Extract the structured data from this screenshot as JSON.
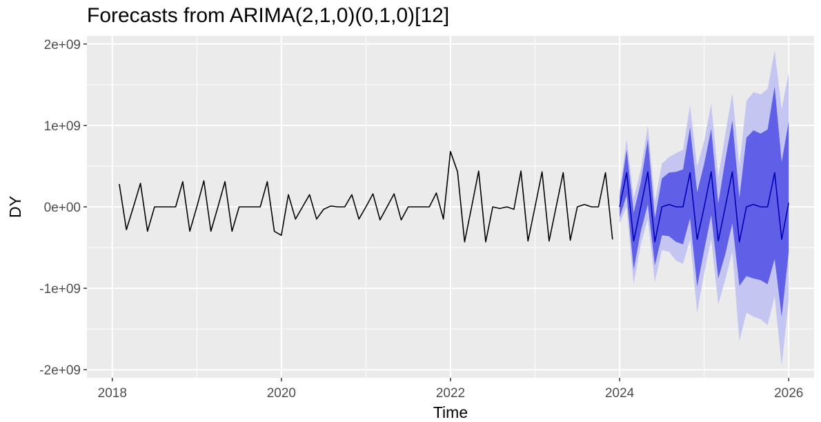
{
  "chart_data": {
    "type": "line",
    "title": "Forecasts from ARIMA(2,1,0)(0,1,0)[12]",
    "xlabel": "Time",
    "ylabel": "DY",
    "xlim": [
      2017.7,
      2026.3
    ],
    "ylim": [
      -2100000000.0,
      2100000000.0
    ],
    "x_ticks": [
      2018,
      2020,
      2022,
      2024,
      2026
    ],
    "x_tick_labels": [
      "2018",
      "2020",
      "2022",
      "2024",
      "2026"
    ],
    "y_ticks": [
      -2000000000.0,
      -1000000000.0,
      0,
      1000000000.0,
      2000000000.0
    ],
    "y_tick_labels": [
      "-2e+09",
      "-1e+09",
      "0e+00",
      "1e+09",
      "2e+09"
    ],
    "grid": true,
    "legend": "none",
    "series": [
      {
        "role": "observed",
        "color": "#000000",
        "x_start": 2018.083,
        "x_step": 0.08333,
        "values": [
          280000000.0,
          -280000000.0,
          0,
          290000000.0,
          -300000000.0,
          0,
          0,
          0,
          0,
          310000000.0,
          -300000000.0,
          0,
          320000000.0,
          -300000000.0,
          0,
          310000000.0,
          -300000000.0,
          0,
          0,
          0,
          0,
          310000000.0,
          -300000000.0,
          -350000000.0,
          150000000.0,
          -150000000.0,
          0,
          150000000.0,
          -150000000.0,
          -30000000.0,
          10000000.0,
          0,
          0,
          150000000.0,
          -150000000.0,
          0,
          160000000.0,
          -160000000.0,
          0,
          160000000.0,
          -160000000.0,
          0,
          0,
          0,
          0,
          170000000.0,
          -150000000.0,
          680000000.0,
          430000000.0,
          -430000000.0,
          0,
          440000000.0,
          -430000000.0,
          0,
          -20000000.0,
          0,
          -30000000.0,
          440000000.0,
          -420000000.0,
          0,
          430000000.0,
          -420000000.0,
          0,
          420000000.0,
          -410000000.0,
          0,
          30000000.0,
          0,
          0,
          420000000.0,
          -400000000.0
        ]
      },
      {
        "role": "forecast",
        "color": "#0000b3",
        "x_start": 2024.0,
        "x_step": 0.08333,
        "values": [
          0,
          420000000.0,
          -420000000.0,
          0,
          430000000.0,
          -430000000.0,
          0,
          30000000.0,
          0,
          0,
          420000000.0,
          -400000000.0,
          0,
          430000000.0,
          -420000000.0,
          0,
          430000000.0,
          -430000000.0,
          0,
          30000000.0,
          0,
          0,
          420000000.0,
          -400000000.0,
          50000000.0
        ]
      }
    ],
    "interval_80": {
      "color": "#5f5fe8",
      "lower": [
        -130000000.0,
        140000000.0,
        -770000000.0,
        -300000000.0,
        30000000.0,
        -720000000.0,
        -350000000.0,
        -360000000.0,
        -430000000.0,
        -460000000.0,
        -140000000.0,
        -980000000.0,
        -530000000.0,
        -100000000.0,
        -880000000.0,
        -580000000.0,
        -200000000.0,
        -970000000.0,
        -850000000.0,
        -880000000.0,
        -900000000.0,
        -950000000.0,
        -640000000.0,
        -1350000000.0,
        -550000000.0
      ],
      "upper": [
        130000000.0,
        700000000.0,
        -70000000.0,
        300000000.0,
        830000000.0,
        -140000000.0,
        350000000.0,
        420000000.0,
        430000000.0,
        460000000.0,
        980000000.0,
        180000000.0,
        530000000.0,
        960000000.0,
        40000000.0,
        580000000.0,
        1060000000.0,
        110000000.0,
        850000000.0,
        940000000.0,
        900000000.0,
        950000000.0,
        1480000000.0,
        550000000.0,
        1050000000.0
      ]
    },
    "interval_95": {
      "color": "#c5c5f2",
      "lower": [
        -200000000.0,
        0.0,
        -950000000.0,
        -460000000.0,
        -150000000.0,
        -920000000.0,
        -530000000.0,
        -550000000.0,
        -660000000.0,
        -700000000.0,
        -400000000.0,
        -1300000000.0,
        -810000000.0,
        -400000000.0,
        -1200000000.0,
        -890000000.0,
        -550000000.0,
        -1650000000.0,
        -1300000000.0,
        -1350000000.0,
        -1380000000.0,
        -1450000000.0,
        -1100000000.0,
        -1950000000.0,
        -1150000000.0
      ],
      "upper": [
        200000000.0,
        830000000.0,
        110000000.0,
        460000000.0,
        1000000000.0,
        60000000.0,
        530000000.0,
        610000000.0,
        660000000.0,
        700000000.0,
        1250000000.0,
        500000000.0,
        810000000.0,
        1270000000.0,
        360000000.0,
        890000000.0,
        1400000000.0,
        500000000.0,
        1300000000.0,
        1410000000.0,
        1380000000.0,
        1450000000.0,
        1920000000.0,
        1200000000.0,
        1650000000.0
      ]
    },
    "colors": {
      "panel_background": "#ebebeb",
      "grid_major": "#ffffff",
      "tick_text": "#4d4d4d"
    }
  }
}
